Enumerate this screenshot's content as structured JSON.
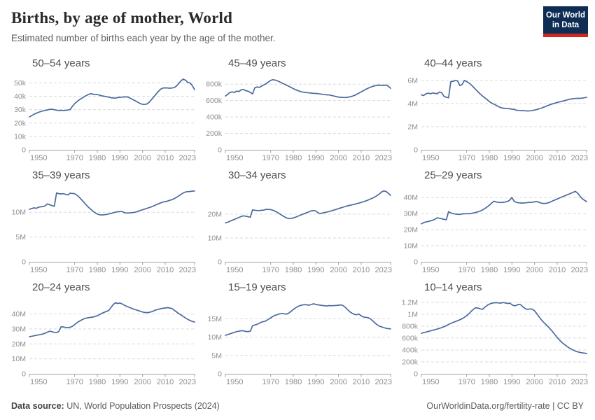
{
  "header": {
    "title": "Births, by age of mother, World",
    "subtitle": "Estimated number of births each year by the age of the mother.",
    "logo": {
      "line1": "Our World",
      "line2": "in Data",
      "bg": "#0d2d55",
      "accent": "#d1271f"
    }
  },
  "footer": {
    "source_label": "Data source:",
    "source_text": " UN, World Population Prospects (2024)",
    "credit": "OurWorldinData.org/fertility-rate | CC BY"
  },
  "colors": {
    "line": "#4b6a9e",
    "grid": "#dadada",
    "axis": "#a3a3a3",
    "tick_text": "#8f8f8f",
    "chart_title": "#4f4f4f"
  },
  "x_axis": {
    "start": 1950,
    "end": 2023,
    "ticks": [
      [
        1950,
        "1950"
      ],
      [
        1970,
        "1970"
      ],
      [
        1980,
        "1980"
      ],
      [
        1990,
        "1990"
      ],
      [
        2000,
        "2000"
      ],
      [
        2010,
        "2010"
      ],
      [
        2023,
        "2023"
      ]
    ]
  },
  "chart_data": [
    {
      "type": "line",
      "title": "50–54 years",
      "ylabel": "births",
      "ylim": [
        0,
        57000
      ],
      "yticks": [
        [
          0,
          "0"
        ],
        [
          10000,
          "10k"
        ],
        [
          20000,
          "20k"
        ],
        [
          30000,
          "30k"
        ],
        [
          40000,
          "40k"
        ],
        [
          50000,
          "50k"
        ]
      ],
      "x_start": 1950,
      "values": [
        24500,
        25500,
        26500,
        27300,
        28000,
        28600,
        29100,
        29400,
        29800,
        30200,
        30300,
        29900,
        29600,
        29400,
        29500,
        29400,
        29500,
        29700,
        30000,
        32500,
        34500,
        36000,
        37300,
        38400,
        39400,
        40400,
        41300,
        41900,
        41600,
        41200,
        41300,
        40800,
        40300,
        40000,
        39700,
        39300,
        38900,
        38700,
        38600,
        39000,
        39200,
        39300,
        39500,
        39600,
        39000,
        38200,
        37300,
        36400,
        35400,
        34500,
        34000,
        33900,
        34300,
        35600,
        37600,
        39600,
        41600,
        43600,
        45300,
        46100,
        46300,
        46200,
        46000,
        46200,
        46500,
        47600,
        49600,
        51600,
        52800,
        52000,
        50300,
        50000,
        47900,
        45000
      ]
    },
    {
      "type": "line",
      "title": "45–49 years",
      "ylabel": "births",
      "ylim": [
        0,
        930000
      ],
      "yticks": [
        [
          0,
          "0"
        ],
        [
          200000,
          "200k"
        ],
        [
          400000,
          "400k"
        ],
        [
          600000,
          "600k"
        ],
        [
          800000,
          "800k"
        ]
      ],
      "x_start": 1950,
      "values": [
        655000,
        676000,
        700000,
        706000,
        700000,
        716000,
        710000,
        731000,
        736000,
        721000,
        714000,
        700000,
        681000,
        756000,
        766000,
        760000,
        776000,
        791000,
        806000,
        826000,
        846000,
        855000,
        850000,
        840000,
        828000,
        815000,
        801000,
        788000,
        775000,
        760000,
        746000,
        733000,
        722000,
        712000,
        705000,
        700000,
        697000,
        694000,
        691000,
        688000,
        687000,
        684000,
        680000,
        676000,
        672000,
        670000,
        668000,
        662000,
        655000,
        648000,
        643000,
        640000,
        638000,
        637000,
        640000,
        646000,
        653000,
        663000,
        676000,
        691000,
        706000,
        721000,
        736000,
        750000,
        762000,
        772000,
        780000,
        785000,
        788000,
        786000,
        783000,
        790000,
        775000,
        750000
      ]
    },
    {
      "type": "line",
      "title": "40–44 years",
      "ylabel": "births",
      "ylim": [
        0,
        6600000
      ],
      "yticks": [
        [
          0,
          "0"
        ],
        [
          2000000,
          "2M"
        ],
        [
          4000000,
          "4M"
        ],
        [
          6000000,
          "6M"
        ]
      ],
      "x_start": 1950,
      "values": [
        4750000,
        4700000,
        4850000,
        4900000,
        4850000,
        4920000,
        4880000,
        4850000,
        5000000,
        4920000,
        4620000,
        4550000,
        4500000,
        5900000,
        5920000,
        6000000,
        5950000,
        5550000,
        5650000,
        6000000,
        5900000,
        5780000,
        5620000,
        5420000,
        5220000,
        5020000,
        4820000,
        4650000,
        4500000,
        4350000,
        4180000,
        4050000,
        3950000,
        3850000,
        3750000,
        3650000,
        3600000,
        3580000,
        3570000,
        3550000,
        3520000,
        3500000,
        3420000,
        3410000,
        3400000,
        3390000,
        3370000,
        3360000,
        3370000,
        3400000,
        3440000,
        3490000,
        3540000,
        3600000,
        3680000,
        3760000,
        3840000,
        3910000,
        3980000,
        4040000,
        4090000,
        4140000,
        4190000,
        4240000,
        4290000,
        4340000,
        4390000,
        4420000,
        4440000,
        4450000,
        4450000,
        4470000,
        4500000,
        4550000
      ]
    },
    {
      "type": "line",
      "title": "35–39 years",
      "ylabel": "births",
      "ylim": [
        0,
        15400000
      ],
      "yticks": [
        [
          0,
          "0"
        ],
        [
          5000000,
          "5M"
        ],
        [
          10000000,
          "10M"
        ]
      ],
      "x_start": 1950,
      "values": [
        10600000,
        10750000,
        10900000,
        10800000,
        11000000,
        11100000,
        11150000,
        11300000,
        11700000,
        11500000,
        11350000,
        11200000,
        13900000,
        13750000,
        13700000,
        13750000,
        13600000,
        13500000,
        13850000,
        13800000,
        13750000,
        13450000,
        13050000,
        12550000,
        12050000,
        11550000,
        11050000,
        10650000,
        10250000,
        9900000,
        9650000,
        9500000,
        9450000,
        9500000,
        9550000,
        9650000,
        9750000,
        9900000,
        10000000,
        10100000,
        10150000,
        10150000,
        9900000,
        9850000,
        9850000,
        9900000,
        9950000,
        10050000,
        10200000,
        10350000,
        10500000,
        10650000,
        10800000,
        10950000,
        11100000,
        11300000,
        11500000,
        11700000,
        11900000,
        12050000,
        12150000,
        12250000,
        12400000,
        12550000,
        12750000,
        13000000,
        13300000,
        13600000,
        13900000,
        14100000,
        14150000,
        14200000,
        14250000,
        14300000
      ]
    },
    {
      "type": "line",
      "title": "30–34 years",
      "ylabel": "births",
      "ylim": [
        0,
        32000000
      ],
      "yticks": [
        [
          0,
          "0"
        ],
        [
          10000000,
          "10M"
        ],
        [
          20000000,
          "20M"
        ]
      ],
      "x_start": 1950,
      "values": [
        16300000,
        16600000,
        17000000,
        17400000,
        17800000,
        18200000,
        18600000,
        19000000,
        19300000,
        19100000,
        18900000,
        18700000,
        21800000,
        21600000,
        21500000,
        21500000,
        21600000,
        21700000,
        22000000,
        21950000,
        21900000,
        21600000,
        21200000,
        20700000,
        20100000,
        19500000,
        18900000,
        18400000,
        18100000,
        18200000,
        18400000,
        18700000,
        19100000,
        19500000,
        19900000,
        20300000,
        20600000,
        21000000,
        21400000,
        21500000,
        21300000,
        20500000,
        20300000,
        20500000,
        20700000,
        20900000,
        21100000,
        21400000,
        21700000,
        22000000,
        22300000,
        22600000,
        22900000,
        23200000,
        23500000,
        23700000,
        23900000,
        24100000,
        24400000,
        24600000,
        24900000,
        25200000,
        25500000,
        25900000,
        26300000,
        26700000,
        27200000,
        27800000,
        28400000,
        29300000,
        29700000,
        29500000,
        28700000,
        27900000
      ]
    },
    {
      "type": "line",
      "title": "25–29 years",
      "ylabel": "births",
      "ylim": [
        0,
        47500000
      ],
      "yticks": [
        [
          0,
          "0"
        ],
        [
          10000000,
          "10M"
        ],
        [
          20000000,
          "20M"
        ],
        [
          30000000,
          "30M"
        ],
        [
          40000000,
          "40M"
        ]
      ],
      "x_start": 1950,
      "values": [
        23600000,
        24400000,
        24800000,
        25100000,
        25500000,
        25900000,
        26500000,
        27400000,
        27100000,
        26800000,
        26400000,
        26200000,
        31200000,
        30400000,
        30000000,
        29700000,
        29600000,
        29500000,
        29800000,
        29900000,
        30000000,
        29900000,
        30100000,
        30400000,
        30700000,
        31100000,
        31600000,
        32300000,
        33100000,
        34100000,
        35200000,
        36500000,
        37700000,
        37300000,
        37000000,
        36900000,
        37000000,
        37200000,
        37500000,
        38400000,
        40000000,
        37700000,
        37000000,
        36700000,
        36600000,
        36600000,
        36700000,
        36900000,
        37000000,
        37100000,
        37300000,
        37500000,
        37000000,
        36500000,
        36300000,
        36400000,
        36700000,
        37200000,
        37900000,
        38500000,
        39100000,
        39700000,
        40300000,
        40900000,
        41500000,
        42000000,
        42600000,
        43200000,
        43900000,
        42800000,
        41000000,
        39400000,
        38300000,
        37500000
      ]
    },
    {
      "type": "line",
      "title": "20–24 years",
      "ylabel": "births",
      "ylim": [
        0,
        51000000
      ],
      "yticks": [
        [
          0,
          "0"
        ],
        [
          10000000,
          "10M"
        ],
        [
          20000000,
          "20M"
        ],
        [
          30000000,
          "30M"
        ],
        [
          40000000,
          "40M"
        ]
      ],
      "x_start": 1950,
      "values": [
        24800000,
        25100000,
        25400000,
        25700000,
        26000000,
        26300000,
        26600000,
        27200000,
        27900000,
        28500000,
        28100000,
        27700000,
        27500000,
        28300000,
        31500000,
        31300000,
        31000000,
        30900000,
        31100000,
        31700000,
        32900000,
        34100000,
        35100000,
        36000000,
        36700000,
        37200000,
        37500000,
        37700000,
        37900000,
        38300000,
        38800000,
        39600000,
        40400000,
        41100000,
        41700000,
        42300000,
        44200000,
        46200000,
        47500000,
        47000000,
        47300000,
        46700000,
        45800000,
        45100000,
        44500000,
        43900000,
        43300000,
        42800000,
        42300000,
        41800000,
        41300000,
        41000000,
        40900000,
        41100000,
        41500000,
        42100000,
        42700000,
        43100000,
        43500000,
        43800000,
        44000000,
        44200000,
        44000000,
        43600000,
        42500000,
        41400000,
        40300000,
        39300000,
        38300000,
        37300000,
        36400000,
        35600000,
        35000000,
        34600000
      ]
    },
    {
      "type": "line",
      "title": "15–19 years",
      "ylabel": "births",
      "ylim": [
        0,
        20800000
      ],
      "yticks": [
        [
          0,
          "0"
        ],
        [
          5000000,
          "5M"
        ],
        [
          10000000,
          "10M"
        ],
        [
          15000000,
          "15M"
        ]
      ],
      "x_start": 1950,
      "values": [
        10500000,
        10700000,
        10900000,
        11100000,
        11300000,
        11500000,
        11600000,
        11750000,
        11700000,
        11550000,
        11500000,
        11600000,
        13100000,
        13300000,
        13500000,
        13800000,
        14100000,
        14250000,
        14450000,
        14850000,
        15250000,
        15650000,
        15950000,
        16150000,
        16350000,
        16450000,
        16350000,
        16250000,
        16550000,
        17050000,
        17550000,
        17950000,
        18350000,
        18600000,
        18750000,
        18850000,
        18800000,
        18700000,
        18900000,
        19100000,
        18900000,
        18800000,
        18700000,
        18600000,
        18550000,
        18500000,
        18600000,
        18550000,
        18600000,
        18650000,
        18700000,
        18800000,
        18600000,
        18100000,
        17500000,
        16900000,
        16500000,
        16200000,
        16100000,
        16300000,
        15800000,
        15500000,
        15400000,
        15300000,
        15000000,
        14500000,
        13900000,
        13400000,
        13000000,
        12800000,
        12600000,
        12400000,
        12300000,
        12250000
      ]
    },
    {
      "type": "line",
      "title": "10–14 years",
      "ylabel": "births",
      "ylim": [
        0,
        1280000
      ],
      "yticks": [
        [
          0,
          "0"
        ],
        [
          200000,
          "200k"
        ],
        [
          400000,
          "400k"
        ],
        [
          600000,
          "600k"
        ],
        [
          800000,
          "800k"
        ],
        [
          1000000,
          "1M"
        ],
        [
          1200000,
          "1.2M"
        ]
      ],
      "x_start": 1950,
      "values": [
        680000,
        690000,
        700000,
        710000,
        720000,
        730000,
        740000,
        751000,
        762000,
        775000,
        790000,
        808000,
        828000,
        846000,
        862000,
        876000,
        890000,
        906000,
        924000,
        948000,
        975000,
        1008000,
        1048000,
        1083000,
        1108000,
        1103000,
        1090000,
        1082000,
        1116000,
        1146000,
        1168000,
        1183000,
        1191000,
        1193000,
        1189000,
        1185000,
        1196000,
        1190000,
        1179000,
        1185000,
        1160000,
        1140000,
        1149000,
        1166000,
        1156000,
        1118000,
        1091000,
        1081000,
        1089000,
        1084000,
        1058000,
        1008000,
        956000,
        906000,
        866000,
        828000,
        790000,
        748000,
        706000,
        658000,
        610000,
        568000,
        530000,
        498000,
        468000,
        442000,
        419000,
        399000,
        382000,
        369000,
        359000,
        352000,
        346000,
        341000
      ]
    }
  ]
}
